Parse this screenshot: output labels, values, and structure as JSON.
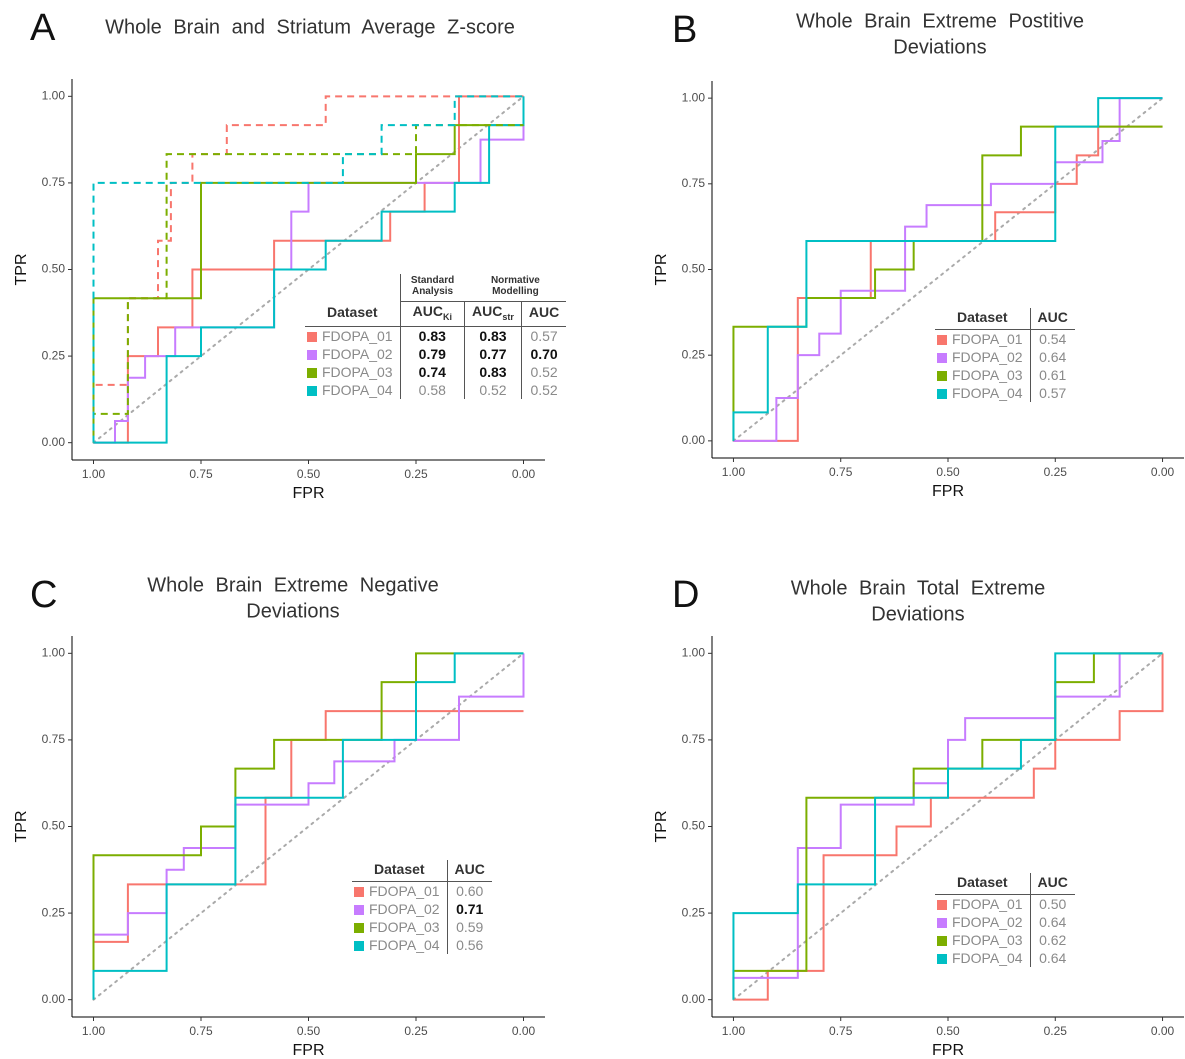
{
  "chart_data": [
    {
      "type": "line",
      "panel": "A",
      "title": [
        "Whole Brain and Striatum Average Z-score"
      ],
      "xlabel": "FPR",
      "ylabel": "TPR",
      "xlim": [
        1.05,
        -0.05
      ],
      "ylim": [
        -0.05,
        1.05
      ],
      "xticks": [
        {
          "value": 1,
          "label": "1.00"
        },
        {
          "value": 0.75,
          "label": "0.75"
        },
        {
          "value": 0.5,
          "label": "0.50"
        },
        {
          "value": 0.25,
          "label": "0.25"
        },
        {
          "value": 0,
          "label": "0.00"
        }
      ],
      "yticks": [
        {
          "value": 0,
          "label": "0.00"
        },
        {
          "value": 0.25,
          "label": "0.25"
        },
        {
          "value": 0.5,
          "label": "0.50"
        },
        {
          "value": 0.75,
          "label": "0.75"
        },
        {
          "value": 1,
          "label": "1.00"
        }
      ],
      "series": [
        {
          "color": "#F8766D",
          "dashed": false,
          "x": [
            1,
            0.92,
            0.92,
            0.85,
            0.85,
            0.77,
            0.77,
            0.58,
            0.58,
            0.31,
            0.31,
            0.23,
            0.23,
            0.15,
            0.15,
            0
          ],
          "values": [
            0,
            0,
            0.25,
            0.25,
            0.333,
            0.333,
            0.5,
            0.5,
            0.583,
            0.583,
            0.667,
            0.667,
            0.75,
            0.75,
            1,
            1
          ]
        },
        {
          "color": "#C77CFF",
          "dashed": false,
          "x": [
            1,
            0.95,
            0.95,
            0.92,
            0.92,
            0.88,
            0.88,
            0.81,
            0.81,
            0.58,
            0.58,
            0.54,
            0.54,
            0.5,
            0.5,
            0.1,
            0.1,
            0,
            0
          ],
          "values": [
            0,
            0,
            0.0625,
            0.0625,
            0.1875,
            0.1875,
            0.25,
            0.25,
            0.333,
            0.333,
            0.5,
            0.5,
            0.667,
            0.667,
            0.75,
            0.75,
            0.875,
            0.875,
            1
          ]
        },
        {
          "color": "#7CAE00",
          "dashed": false,
          "x": [
            1,
            1,
            0.75,
            0.75,
            0.25,
            0.25,
            0.16,
            0.16,
            0
          ],
          "values": [
            0,
            0.417,
            0.417,
            0.75,
            0.75,
            0.833,
            0.833,
            0.917,
            0.917
          ]
        },
        {
          "color": "#00BFC4",
          "dashed": false,
          "x": [
            1,
            0.83,
            0.83,
            0.75,
            0.75,
            0.58,
            0.58,
            0.46,
            0.46,
            0.33,
            0.33,
            0.16,
            0.16,
            0.08,
            0.08,
            0,
            0
          ],
          "values": [
            0,
            0,
            0.25,
            0.25,
            0.333,
            0.333,
            0.5,
            0.5,
            0.583,
            0.583,
            0.667,
            0.667,
            0.75,
            0.75,
            0.917,
            0.917,
            1
          ]
        },
        {
          "color": "#F8766D",
          "dashed": true,
          "x": [
            1,
            1,
            0.92,
            0.92,
            0.85,
            0.85,
            0.82,
            0.82,
            0.77,
            0.77,
            0.69,
            0.69,
            0.46,
            0.46,
            0
          ],
          "values": [
            0,
            0.167,
            0.167,
            0.417,
            0.417,
            0.583,
            0.583,
            0.75,
            0.75,
            0.833,
            0.833,
            0.917,
            0.917,
            1,
            1
          ]
        },
        {
          "color": "#7CAE00",
          "dashed": true,
          "x": [
            1,
            1,
            0.92,
            0.92,
            0.83,
            0.83,
            0.25,
            0.25,
            0
          ],
          "values": [
            0,
            0.083,
            0.083,
            0.417,
            0.417,
            0.833,
            0.833,
            0.917,
            0.917
          ]
        },
        {
          "color": "#00BFC4",
          "dashed": true,
          "x": [
            1,
            1,
            0.42,
            0.42,
            0.33,
            0.33,
            0.16,
            0.16,
            0
          ],
          "values": [
            0,
            0.75,
            0.75,
            0.833,
            0.833,
            0.917,
            0.917,
            1,
            1
          ]
        }
      ],
      "table": {
        "group_header": [
          "Standard Analysis",
          "Normative Modelling"
        ],
        "header": [
          "Dataset",
          {
            "text": "AUC",
            "sub": "Ki"
          },
          {
            "text": "AUC",
            "sub": "str"
          },
          "AUC"
        ],
        "rows": [
          [
            "FDOPA_01",
            {
              "text": "0.83",
              "bold": true
            },
            {
              "text": "0.83",
              "bold": true
            },
            "0.57"
          ],
          [
            "FDOPA_02",
            {
              "text": "0.79",
              "bold": true
            },
            {
              "text": "0.77",
              "bold": true
            },
            {
              "text": "0.70",
              "bold": true
            }
          ],
          [
            "FDOPA_03",
            {
              "text": "0.74",
              "bold": true
            },
            {
              "text": "0.83",
              "bold": true
            },
            "0.52"
          ],
          [
            "FDOPA_04",
            "0.58",
            "0.52",
            "0.52"
          ]
        ]
      }
    },
    {
      "type": "line",
      "panel": "B",
      "title": [
        "Whole Brain Extreme Postitive",
        "Deviations"
      ],
      "xlabel": "FPR",
      "ylabel": "TPR",
      "xlim": [
        1.05,
        -0.05
      ],
      "ylim": [
        -0.05,
        1.05
      ],
      "xticks": [
        {
          "value": 1,
          "label": "1.00"
        },
        {
          "value": 0.75,
          "label": "0.75"
        },
        {
          "value": 0.5,
          "label": "0.50"
        },
        {
          "value": 0.25,
          "label": "0.25"
        },
        {
          "value": 0,
          "label": "0.00"
        }
      ],
      "yticks": [
        {
          "value": 0,
          "label": "0.00"
        },
        {
          "value": 0.25,
          "label": "0.25"
        },
        {
          "value": 0.5,
          "label": "0.50"
        },
        {
          "value": 0.75,
          "label": "0.75"
        },
        {
          "value": 1,
          "label": "1.00"
        }
      ],
      "series": [
        {
          "color": "#F8766D",
          "dashed": false,
          "x": [
            1,
            0.85,
            0.85,
            0.68,
            0.68,
            0.39,
            0.39,
            0.25,
            0.25,
            0.2,
            0.2,
            0.15,
            0.15,
            0
          ],
          "values": [
            0,
            0,
            0.417,
            0.417,
            0.583,
            0.583,
            0.667,
            0.667,
            0.75,
            0.75,
            0.833,
            0.833,
            0.917,
            0.917
          ]
        },
        {
          "color": "#C77CFF",
          "dashed": false,
          "x": [
            1,
            0.9,
            0.9,
            0.85,
            0.85,
            0.8,
            0.8,
            0.75,
            0.75,
            0.6,
            0.6,
            0.55,
            0.55,
            0.4,
            0.4,
            0.25,
            0.25,
            0.14,
            0.14,
            0.1,
            0.1,
            0
          ],
          "values": [
            0,
            0,
            0.125,
            0.125,
            0.25,
            0.25,
            0.313,
            0.313,
            0.438,
            0.438,
            0.625,
            0.625,
            0.688,
            0.688,
            0.75,
            0.75,
            0.813,
            0.813,
            0.875,
            0.875,
            1,
            1
          ]
        },
        {
          "color": "#7CAE00",
          "dashed": false,
          "x": [
            1,
            1,
            0.83,
            0.83,
            0.67,
            0.67,
            0.58,
            0.58,
            0.42,
            0.42,
            0.33,
            0.33,
            0
          ],
          "values": [
            0,
            0.333,
            0.333,
            0.417,
            0.417,
            0.5,
            0.5,
            0.583,
            0.583,
            0.833,
            0.833,
            0.917,
            0.917
          ]
        },
        {
          "color": "#00BFC4",
          "dashed": false,
          "x": [
            1,
            1,
            0.92,
            0.92,
            0.83,
            0.83,
            0.25,
            0.25,
            0.15,
            0.15,
            0
          ],
          "values": [
            0,
            0.083,
            0.083,
            0.333,
            0.333,
            0.583,
            0.583,
            0.917,
            0.917,
            1,
            1
          ]
        }
      ],
      "table": {
        "header": [
          "Dataset",
          "AUC"
        ],
        "rows": [
          [
            "FDOPA_01",
            "0.54"
          ],
          [
            "FDOPA_02",
            "0.64"
          ],
          [
            "FDOPA_03",
            "0.61"
          ],
          [
            "FDOPA_04",
            "0.57"
          ]
        ]
      }
    },
    {
      "type": "line",
      "panel": "C",
      "title": [
        "Whole Brain Extreme Negative",
        "Deviations"
      ],
      "xlabel": "FPR",
      "ylabel": "TPR",
      "xlim": [
        1.05,
        -0.05
      ],
      "ylim": [
        -0.05,
        1.05
      ],
      "xticks": [
        {
          "value": 1,
          "label": "1.00"
        },
        {
          "value": 0.75,
          "label": "0.75"
        },
        {
          "value": 0.5,
          "label": "0.50"
        },
        {
          "value": 0.25,
          "label": "0.25"
        },
        {
          "value": 0,
          "label": "0.00"
        }
      ],
      "yticks": [
        {
          "value": 0,
          "label": "0.00"
        },
        {
          "value": 0.25,
          "label": "0.25"
        },
        {
          "value": 0.5,
          "label": "0.50"
        },
        {
          "value": 0.75,
          "label": "0.75"
        },
        {
          "value": 1,
          "label": "1.00"
        }
      ],
      "series": [
        {
          "color": "#F8766D",
          "dashed": false,
          "x": [
            1,
            1,
            0.92,
            0.92,
            0.6,
            0.6,
            0.54,
            0.54,
            0.46,
            0.46,
            0
          ],
          "values": [
            0,
            0.167,
            0.167,
            0.333,
            0.333,
            0.583,
            0.583,
            0.75,
            0.75,
            0.833,
            0.833
          ]
        },
        {
          "color": "#C77CFF",
          "dashed": false,
          "x": [
            1,
            1,
            0.92,
            0.92,
            0.83,
            0.83,
            0.79,
            0.79,
            0.67,
            0.67,
            0.5,
            0.5,
            0.44,
            0.44,
            0.3,
            0.3,
            0.15,
            0.15,
            0,
            0
          ],
          "values": [
            0,
            0.188,
            0.188,
            0.25,
            0.25,
            0.375,
            0.375,
            0.438,
            0.438,
            0.563,
            0.563,
            0.625,
            0.625,
            0.688,
            0.688,
            0.75,
            0.75,
            0.875,
            0.875,
            1
          ]
        },
        {
          "color": "#7CAE00",
          "dashed": false,
          "x": [
            1,
            1,
            0.75,
            0.75,
            0.67,
            0.67,
            0.58,
            0.58,
            0.33,
            0.33,
            0.25,
            0.25,
            0
          ],
          "values": [
            0,
            0.417,
            0.417,
            0.5,
            0.5,
            0.667,
            0.667,
            0.75,
            0.75,
            0.917,
            0.917,
            1,
            1
          ]
        },
        {
          "color": "#00BFC4",
          "dashed": false,
          "x": [
            1,
            1,
            0.83,
            0.83,
            0.67,
            0.67,
            0.42,
            0.42,
            0.25,
            0.25,
            0.16,
            0.16,
            0
          ],
          "values": [
            0,
            0.083,
            0.083,
            0.333,
            0.333,
            0.583,
            0.583,
            0.75,
            0.75,
            0.917,
            0.917,
            1,
            1
          ]
        }
      ],
      "table": {
        "header": [
          "Dataset",
          "AUC"
        ],
        "rows": [
          [
            "FDOPA_01",
            "0.60"
          ],
          [
            "FDOPA_02",
            {
              "text": "0.71",
              "bold": true
            }
          ],
          [
            "FDOPA_03",
            "0.59"
          ],
          [
            "FDOPA_04",
            "0.56"
          ]
        ]
      }
    },
    {
      "type": "line",
      "panel": "D",
      "title": [
        "Whole Brain Total Extreme",
        "Deviations"
      ],
      "xlabel": "FPR",
      "ylabel": "TPR",
      "xlim": [
        1.05,
        -0.05
      ],
      "ylim": [
        -0.05,
        1.05
      ],
      "xticks": [
        {
          "value": 1,
          "label": "1.00"
        },
        {
          "value": 0.75,
          "label": "0.75"
        },
        {
          "value": 0.5,
          "label": "0.50"
        },
        {
          "value": 0.25,
          "label": "0.25"
        },
        {
          "value": 0,
          "label": "0.00"
        }
      ],
      "yticks": [
        {
          "value": 0,
          "label": "0.00"
        },
        {
          "value": 0.25,
          "label": "0.25"
        },
        {
          "value": 0.5,
          "label": "0.50"
        },
        {
          "value": 0.75,
          "label": "0.75"
        },
        {
          "value": 1,
          "label": "1.00"
        }
      ],
      "series": [
        {
          "color": "#F8766D",
          "dashed": false,
          "x": [
            1,
            0.92,
            0.92,
            0.79,
            0.79,
            0.62,
            0.62,
            0.54,
            0.54,
            0.3,
            0.3,
            0.25,
            0.25,
            0.1,
            0.1,
            0,
            0
          ],
          "values": [
            0,
            0,
            0.083,
            0.083,
            0.417,
            0.417,
            0.5,
            0.5,
            0.583,
            0.583,
            0.667,
            0.667,
            0.75,
            0.75,
            0.833,
            0.833,
            1
          ]
        },
        {
          "color": "#C77CFF",
          "dashed": false,
          "x": [
            1,
            1,
            0.85,
            0.85,
            0.75,
            0.75,
            0.58,
            0.58,
            0.5,
            0.5,
            0.46,
            0.46,
            0.25,
            0.25,
            0.1,
            0.1,
            0
          ],
          "values": [
            0,
            0.063,
            0.063,
            0.438,
            0.438,
            0.563,
            0.563,
            0.625,
            0.625,
            0.75,
            0.75,
            0.813,
            0.813,
            0.875,
            0.875,
            1,
            1
          ]
        },
        {
          "color": "#7CAE00",
          "dashed": false,
          "x": [
            1,
            1,
            0.83,
            0.83,
            0.58,
            0.58,
            0.42,
            0.42,
            0.25,
            0.25,
            0.16,
            0.16,
            0
          ],
          "values": [
            0,
            0.083,
            0.083,
            0.583,
            0.583,
            0.667,
            0.667,
            0.75,
            0.75,
            0.917,
            0.917,
            1,
            1
          ]
        },
        {
          "color": "#00BFC4",
          "dashed": false,
          "x": [
            1,
            1,
            0.85,
            0.85,
            0.67,
            0.67,
            0.5,
            0.5,
            0.33,
            0.33,
            0.25,
            0.25,
            0
          ],
          "values": [
            0,
            0.25,
            0.25,
            0.333,
            0.333,
            0.583,
            0.583,
            0.667,
            0.667,
            0.75,
            0.75,
            1,
            1
          ]
        }
      ],
      "table": {
        "header": [
          "Dataset",
          "AUC"
        ],
        "rows": [
          [
            "FDOPA_01",
            "0.50"
          ],
          [
            "FDOPA_02",
            "0.64"
          ],
          [
            "FDOPA_03",
            "0.62"
          ],
          [
            "FDOPA_04",
            "0.64"
          ]
        ]
      }
    }
  ]
}
